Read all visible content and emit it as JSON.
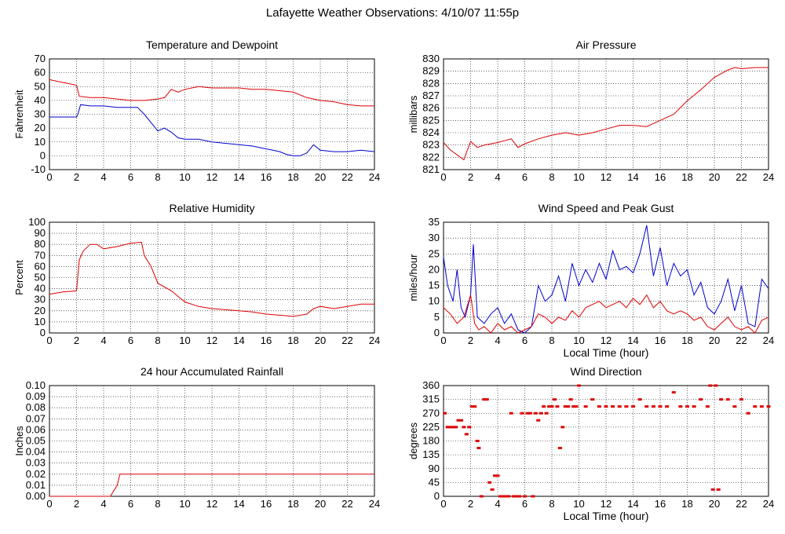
{
  "page": {
    "title": "Lafayette Weather Observations: 4/10/07 11:55p"
  },
  "chart_data": [
    {
      "type": "line",
      "title": "Temperature and Dewpoint",
      "xlabel": "",
      "ylabel": "Fahrenheit",
      "xlim": [
        0,
        24
      ],
      "ylim": [
        -10,
        70
      ],
      "xticks": [
        0,
        2,
        4,
        6,
        8,
        10,
        12,
        14,
        16,
        18,
        20,
        22,
        24
      ],
      "yticks": [
        -10,
        0,
        10,
        20,
        30,
        40,
        50,
        60,
        70
      ],
      "grid": true,
      "series": [
        {
          "color": "#dd0000",
          "x": [
            0,
            0.5,
            1,
            1.5,
            2,
            2.2,
            3,
            4,
            5,
            6,
            7,
            8,
            8.5,
            9,
            9.5,
            10,
            11,
            12,
            13,
            14,
            15,
            16,
            17,
            18,
            18.5,
            19,
            19.5,
            20,
            21,
            22,
            23,
            24
          ],
          "y": [
            55,
            54,
            53,
            52,
            51,
            43,
            42,
            42,
            41,
            40,
            40,
            41,
            42,
            48,
            46,
            48,
            50,
            49,
            49,
            49,
            48,
            48,
            47,
            46,
            44,
            42,
            41,
            40,
            39,
            37,
            36,
            36
          ]
        },
        {
          "color": "#0000cc",
          "x": [
            0,
            1,
            2,
            2.1,
            2.3,
            3,
            4,
            5,
            6,
            6.5,
            7,
            7.5,
            8,
            8.5,
            9,
            9.5,
            10,
            11,
            12,
            13,
            14,
            15,
            16,
            16.5,
            17,
            17.5,
            18,
            18.5,
            19,
            19.5,
            20,
            21,
            22,
            23,
            24
          ],
          "y": [
            28,
            28,
            28,
            30,
            37,
            36,
            36,
            35,
            35,
            35,
            30,
            24,
            18,
            20,
            17,
            13,
            12,
            12,
            10,
            9,
            8,
            7,
            5,
            4,
            3,
            1,
            0,
            0,
            2,
            8,
            4,
            3,
            3,
            4,
            3
          ]
        }
      ]
    },
    {
      "type": "line",
      "title": "Air Pressure",
      "xlabel": "",
      "ylabel": "millibars",
      "xlim": [
        0,
        24
      ],
      "ylim": [
        821,
        830
      ],
      "xticks": [
        0,
        2,
        4,
        6,
        8,
        10,
        12,
        14,
        16,
        18,
        20,
        22,
        24
      ],
      "yticks": [
        821,
        822,
        823,
        824,
        825,
        826,
        827,
        828,
        829,
        830
      ],
      "grid": true,
      "series": [
        {
          "color": "#dd0000",
          "x": [
            0,
            0.5,
            1,
            1.5,
            2,
            2.5,
            3,
            4,
            5,
            5.5,
            6,
            7,
            8,
            9,
            10,
            11,
            12,
            13,
            14,
            15,
            16,
            17,
            18,
            19,
            20,
            21,
            21.5,
            22,
            23,
            24
          ],
          "y": [
            823.2,
            822.6,
            822.2,
            821.8,
            823.3,
            822.8,
            823.0,
            823.2,
            823.5,
            822.8,
            823.1,
            823.5,
            823.8,
            824.0,
            823.8,
            824.0,
            824.3,
            824.6,
            824.6,
            824.5,
            825.0,
            825.5,
            826.6,
            827.5,
            828.5,
            829.1,
            829.3,
            829.2,
            829.3,
            829.3
          ]
        }
      ]
    },
    {
      "type": "line",
      "title": "Relative Humidity",
      "xlabel": "",
      "ylabel": "Percent",
      "xlim": [
        0,
        24
      ],
      "ylim": [
        0,
        100
      ],
      "xticks": [
        0,
        2,
        4,
        6,
        8,
        10,
        12,
        14,
        16,
        18,
        20,
        22,
        24
      ],
      "yticks": [
        0,
        10,
        20,
        30,
        40,
        50,
        60,
        70,
        80,
        90,
        100
      ],
      "grid": true,
      "series": [
        {
          "color": "#dd0000",
          "x": [
            0,
            1,
            2,
            2.2,
            2.5,
            3,
            3.5,
            4,
            5,
            6,
            6.8,
            7,
            7.5,
            8,
            9,
            10,
            11,
            12,
            13,
            14,
            15,
            16,
            17,
            18,
            19,
            19.5,
            20,
            21,
            22,
            23,
            24
          ],
          "y": [
            35,
            37,
            38,
            66,
            74,
            80,
            80,
            76,
            78,
            81,
            82,
            70,
            60,
            45,
            38,
            28,
            24,
            22,
            21,
            20,
            19,
            17,
            16,
            15,
            17,
            22,
            24,
            22,
            24,
            26,
            26
          ]
        }
      ]
    },
    {
      "type": "line",
      "title": "Wind Speed and Peak Gust",
      "xlabel": "Local Time (hour)",
      "ylabel": "miles/hour",
      "xlim": [
        0,
        24
      ],
      "ylim": [
        0,
        35
      ],
      "xticks": [
        0,
        2,
        4,
        6,
        8,
        10,
        12,
        14,
        16,
        18,
        20,
        22,
        24
      ],
      "yticks": [
        0,
        5,
        10,
        15,
        20,
        25,
        30,
        35
      ],
      "grid": true,
      "series": [
        {
          "color": "#0000cc",
          "x": [
            0,
            0.3,
            0.7,
            1,
            1.3,
            1.6,
            2,
            2.2,
            2.5,
            3,
            3.5,
            4,
            4.5,
            5,
            5.5,
            6,
            6.5,
            7,
            7.5,
            8,
            8.5,
            9,
            9.5,
            10,
            10.5,
            11,
            11.5,
            12,
            12.5,
            13,
            13.5,
            14,
            14.5,
            15,
            15.5,
            16,
            16.5,
            17,
            17.5,
            18,
            18.5,
            19,
            19.5,
            20,
            20.5,
            21,
            21.5,
            22,
            22.5,
            23,
            23.5,
            24
          ],
          "y": [
            24,
            15,
            10,
            20,
            8,
            5,
            12,
            28,
            5,
            3,
            6,
            8,
            3,
            6,
            1,
            0,
            2,
            15,
            10,
            12,
            18,
            10,
            22,
            15,
            20,
            16,
            22,
            17,
            26,
            20,
            21,
            19,
            25,
            34,
            18,
            27,
            15,
            22,
            18,
            20,
            12,
            16,
            8,
            6,
            10,
            17,
            7,
            15,
            3,
            2,
            17,
            14
          ]
        },
        {
          "color": "#dd0000",
          "x": [
            0,
            0.5,
            1,
            1.5,
            2,
            2.3,
            2.6,
            3,
            3.5,
            4,
            4.5,
            5,
            5.5,
            6,
            6.5,
            7,
            7.5,
            8,
            8.5,
            9,
            9.5,
            10,
            10.5,
            11,
            11.5,
            12,
            12.5,
            13,
            13.5,
            14,
            14.5,
            15,
            15.5,
            16,
            16.5,
            17,
            17.5,
            18,
            18.5,
            19,
            19.5,
            20,
            20.5,
            21,
            21.5,
            22,
            22.5,
            23,
            23.5,
            24
          ],
          "y": [
            8,
            6,
            3,
            5,
            12,
            3,
            1,
            2,
            0,
            3,
            1,
            2,
            0,
            1,
            2,
            6,
            5,
            3,
            5,
            4,
            7,
            5,
            8,
            9,
            10,
            8,
            9,
            10,
            8,
            11,
            9,
            12,
            8,
            10,
            7,
            6,
            7,
            6,
            4,
            5,
            2,
            1,
            3,
            5,
            2,
            1,
            2,
            0,
            4,
            5
          ]
        }
      ]
    },
    {
      "type": "line",
      "title": "24 hour Accumulated Rainfall",
      "xlabel": "",
      "ylabel": "Inches",
      "xlim": [
        0,
        24
      ],
      "ylim": [
        0,
        0.1
      ],
      "xticks": [
        0,
        2,
        4,
        6,
        8,
        10,
        12,
        14,
        16,
        18,
        20,
        22,
        24
      ],
      "yticks": [
        "0.00",
        "0.01",
        "0.02",
        "0.03",
        "0.04",
        "0.05",
        "0.06",
        "0.07",
        "0.08",
        "0.09",
        "0.10"
      ],
      "grid": true,
      "series": [
        {
          "color": "#dd0000",
          "x": [
            0,
            4.5,
            5.0,
            5.2,
            24
          ],
          "y": [
            0,
            0,
            0.01,
            0.02,
            0.02
          ]
        }
      ]
    },
    {
      "type": "scatter",
      "title": "Wind Direction",
      "xlabel": "Local Time (hour)",
      "ylabel": "degrees",
      "xlim": [
        0,
        24
      ],
      "ylim": [
        0,
        360
      ],
      "xticks": [
        0,
        2,
        4,
        6,
        8,
        10,
        12,
        14,
        16,
        18,
        20,
        22,
        24
      ],
      "yticks": [
        0,
        45,
        90,
        135,
        180,
        225,
        270,
        315,
        360
      ],
      "grid": true,
      "series": [
        {
          "color": "#dd0000",
          "x": [
            0.1,
            0.3,
            0.5,
            0.7,
            0.9,
            1.1,
            1.3,
            1.5,
            1.7,
            1.9,
            2.1,
            2.3,
            2.5,
            2.6,
            2.8,
            3.0,
            3.2,
            3.4,
            3.6,
            3.8,
            4.0,
            4.2,
            4.4,
            4.6,
            4.8,
            5.0,
            5.2,
            5.4,
            5.6,
            5.8,
            6.0,
            6.2,
            6.4,
            6.6,
            6.8,
            7.0,
            7.2,
            7.4,
            7.6,
            7.8,
            8.0,
            8.2,
            8.4,
            8.6,
            8.8,
            9.0,
            9.2,
            9.4,
            9.6,
            9.8,
            10.0,
            10.5,
            11.0,
            11.5,
            12.0,
            12.5,
            13.0,
            13.5,
            14.0,
            14.5,
            15.0,
            15.5,
            16.0,
            16.5,
            17.0,
            17.5,
            18.0,
            18.5,
            19.0,
            19.5,
            19.7,
            19.9,
            20.1,
            20.3,
            20.5,
            21.0,
            21.5,
            22.0,
            22.5,
            23.0,
            23.5,
            24.0
          ],
          "y": [
            270,
            225,
            225,
            225,
            225,
            247,
            247,
            225,
            202,
            225,
            292,
            292,
            180,
            157,
            0,
            315,
            315,
            45,
            22,
            67,
            67,
            0,
            0,
            0,
            0,
            270,
            0,
            0,
            0,
            270,
            0,
            270,
            270,
            0,
            270,
            247,
            270,
            292,
            270,
            292,
            292,
            315,
            292,
            157,
            225,
            292,
            292,
            315,
            292,
            292,
            360,
            292,
            315,
            292,
            292,
            292,
            292,
            292,
            292,
            315,
            292,
            292,
            292,
            292,
            338,
            292,
            292,
            292,
            315,
            292,
            360,
            22,
            360,
            22,
            315,
            315,
            292,
            315,
            270,
            292,
            292,
            292
          ]
        }
      ]
    }
  ]
}
